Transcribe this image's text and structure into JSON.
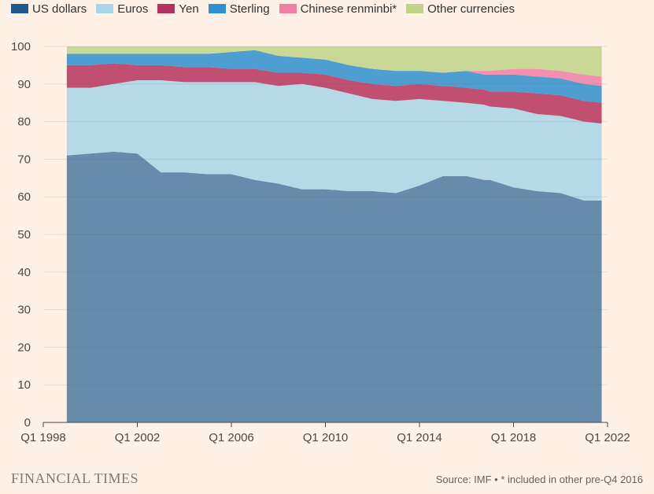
{
  "chart_data": {
    "type": "area",
    "stacked": true,
    "title": "",
    "xlabel": "",
    "ylabel": "",
    "ylim": [
      0,
      100
    ],
    "yticks": [
      0,
      10,
      20,
      30,
      40,
      50,
      60,
      70,
      80,
      90,
      100
    ],
    "xlim": [
      1998.0,
      2022.0
    ],
    "xticks": [
      {
        "value": 1998.0,
        "label": "Q1 1998"
      },
      {
        "value": 2002.0,
        "label": "Q1 2002"
      },
      {
        "value": 2006.0,
        "label": "Q1 2006"
      },
      {
        "value": 2010.0,
        "label": "Q1 2010"
      },
      {
        "value": 2014.0,
        "label": "Q1 2014"
      },
      {
        "value": 2018.0,
        "label": "Q1 2018"
      },
      {
        "value": 2022.0,
        "label": "Q1 2022"
      }
    ],
    "grid": true,
    "legend_position": "top",
    "x": [
      1999.0,
      2000.0,
      2001.0,
      2002.0,
      2003.0,
      2004.0,
      2005.0,
      2006.0,
      2007.0,
      2008.0,
      2009.0,
      2010.0,
      2011.0,
      2012.0,
      2013.0,
      2014.0,
      2015.0,
      2016.0,
      2016.75,
      2017.0,
      2018.0,
      2019.0,
      2020.0,
      2021.0,
      2021.75
    ],
    "series": [
      {
        "name": "US dollars",
        "color": "#1f5a8f",
        "values": [
          71.0,
          71.5,
          72.0,
          71.5,
          66.5,
          66.5,
          66.0,
          66.0,
          64.5,
          63.5,
          62.0,
          62.0,
          61.5,
          61.5,
          61.0,
          63.0,
          65.5,
          65.5,
          64.5,
          64.5,
          62.5,
          61.5,
          61.0,
          59.0,
          59.0
        ]
      },
      {
        "name": "Euros",
        "color": "#a8d5e8",
        "values": [
          18.0,
          17.5,
          18.0,
          19.5,
          24.5,
          24.0,
          24.5,
          24.5,
          26.0,
          26.0,
          28.0,
          27.0,
          26.0,
          24.5,
          24.5,
          23.0,
          20.0,
          19.5,
          20.0,
          19.5,
          21.0,
          20.5,
          20.5,
          21.0,
          20.5
        ]
      },
      {
        "name": "Yen",
        "color": "#b5325e",
        "values": [
          6.0,
          6.0,
          5.5,
          4.0,
          4.0,
          4.0,
          4.0,
          3.5,
          3.5,
          3.5,
          3.0,
          3.5,
          3.5,
          4.0,
          4.0,
          4.0,
          4.0,
          4.0,
          4.0,
          4.0,
          4.5,
          5.5,
          5.5,
          5.5,
          5.5
        ]
      },
      {
        "name": "Sterling",
        "color": "#2f8fcf",
        "values": [
          3.0,
          3.0,
          2.5,
          3.0,
          3.0,
          3.5,
          3.5,
          4.5,
          5.0,
          4.5,
          4.0,
          4.0,
          4.0,
          4.0,
          4.0,
          3.5,
          3.5,
          4.5,
          4.0,
          4.5,
          4.5,
          4.5,
          4.5,
          4.5,
          4.5
        ]
      },
      {
        "name": "Chinese renminbi*",
        "color": "#f07fa6",
        "values": [
          0,
          0,
          0,
          0,
          0,
          0,
          0,
          0,
          0,
          0,
          0,
          0,
          0,
          0,
          0,
          0,
          0,
          0,
          1.0,
          1.0,
          1.5,
          2.0,
          2.0,
          2.5,
          2.5
        ]
      },
      {
        "name": "Other currencies",
        "color": "#c1d48a",
        "values": [
          2.0,
          2.0,
          2.0,
          2.0,
          2.0,
          2.0,
          2.0,
          1.5,
          1.0,
          2.5,
          3.0,
          3.5,
          5.0,
          6.0,
          6.5,
          6.5,
          7.0,
          6.5,
          6.5,
          6.5,
          6.0,
          6.0,
          6.5,
          7.5,
          8.0
        ]
      }
    ]
  },
  "footer": {
    "brand": "FINANCIAL TIMES",
    "source": "Source: IMF • * included in other pre-Q4 2016"
  }
}
